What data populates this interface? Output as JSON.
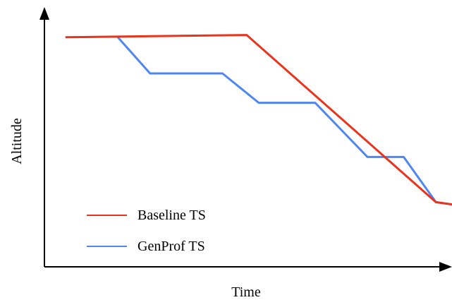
{
  "chart_data": {
    "type": "line",
    "xlabel": "Time",
    "ylabel": "Altitude",
    "xlim": [
      0,
      100
    ],
    "ylim": [
      0,
      100
    ],
    "grid": false,
    "legend_position": "bottom-left",
    "series": [
      {
        "name": "Baseline TS",
        "color": "#e8341c",
        "x": [
          4,
          49,
          96,
          100
        ],
        "y": [
          96,
          97,
          23,
          22
        ]
      },
      {
        "name": "GenProf TS",
        "color": "#4f86f0",
        "x": [
          17,
          25,
          43,
          52,
          66,
          79,
          88,
          96,
          100
        ],
        "y": [
          96,
          80,
          80,
          67,
          67,
          43,
          43,
          23,
          22
        ]
      }
    ]
  }
}
